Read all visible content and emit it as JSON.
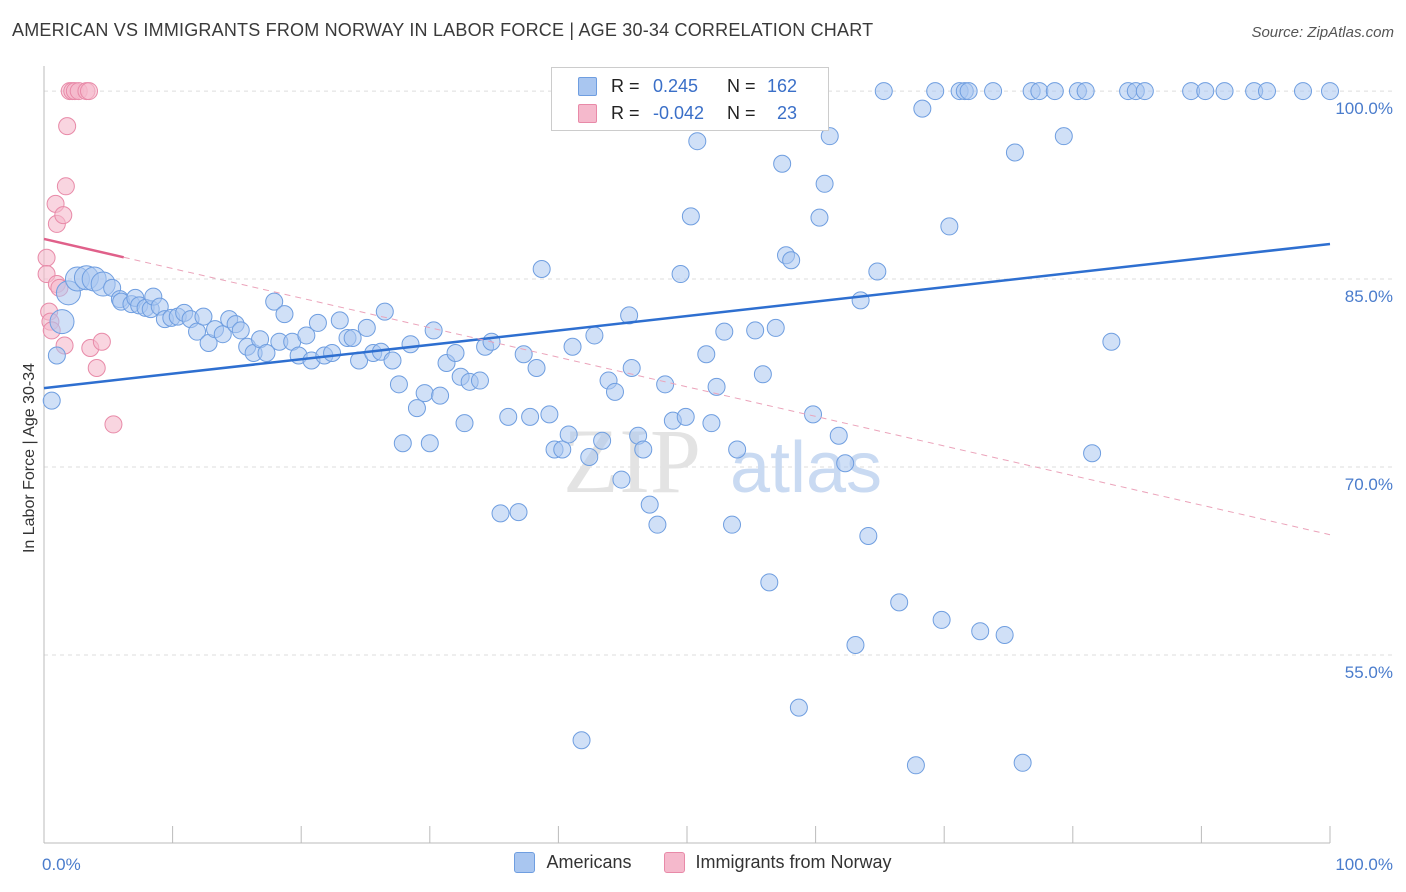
{
  "header": {
    "title": "AMERICAN VS IMMIGRANTS FROM NORWAY IN LABOR FORCE | AGE 30-34 CORRELATION CHART",
    "source": "Source: ZipAtlas.com"
  },
  "watermark": {
    "zip": "ZIP",
    "atlas": "atlas"
  },
  "legend": {
    "rows": [
      {
        "r_label": "R =",
        "r_value": "0.245",
        "n_label": "N =",
        "n_value": "162",
        "color": "#a9c6f0"
      },
      {
        "r_label": "R =",
        "r_value": "-0.042",
        "n_label": "N =",
        "n_value": "23",
        "color": "#f5b9cc"
      }
    ]
  },
  "bottom_legend": [
    {
      "label": "Americans",
      "color": "#a9c6f0"
    },
    {
      "label": "Immigrants from Norway",
      "color": "#f5b9cc"
    }
  ],
  "chart_data": {
    "type": "scatter",
    "title": "AMERICAN VS IMMIGRANTS FROM NORWAY IN LABOR FORCE | AGE 30-34 CORRELATION CHART",
    "xlabel": "",
    "ylabel": "In Labor Force | Age 30-34",
    "xlim": [
      0,
      100
    ],
    "ylim": [
      40,
      102
    ],
    "x_tick_labels": [
      "0.0%",
      "100.0%"
    ],
    "y_ticks": [
      55,
      70,
      85,
      100
    ],
    "y_tick_labels": [
      "55.0%",
      "70.0%",
      "85.0%",
      "100.0%"
    ],
    "grid": true,
    "legend_position": "top-center",
    "series": [
      {
        "name": "Americans",
        "color": "#a9c6f0",
        "stroke": "#6f9ee0",
        "r": 0.245,
        "n": 162,
        "trend": {
          "x": [
            0,
            100
          ],
          "y": [
            76.3,
            87.8
          ],
          "color": "#2e6fd0"
        },
        "points": [
          [
            0.6,
            75.3
          ],
          [
            1.0,
            78.9
          ],
          [
            1.4,
            81.6
          ],
          [
            1.9,
            83.9
          ],
          [
            2.6,
            85.0
          ],
          [
            3.3,
            85.1
          ],
          [
            3.9,
            85.0
          ],
          [
            4.6,
            84.6
          ],
          [
            5.3,
            84.3
          ],
          [
            5.9,
            83.4
          ],
          [
            6.0,
            83.2
          ],
          [
            6.8,
            83.0
          ],
          [
            7.1,
            83.5
          ],
          [
            7.4,
            82.9
          ],
          [
            7.9,
            82.7
          ],
          [
            8.3,
            82.6
          ],
          [
            8.5,
            83.6
          ],
          [
            9.0,
            82.8
          ],
          [
            9.4,
            81.8
          ],
          [
            9.9,
            81.9
          ],
          [
            10.4,
            82.0
          ],
          [
            10.9,
            82.3
          ],
          [
            11.4,
            81.8
          ],
          [
            11.9,
            80.8
          ],
          [
            12.4,
            82.0
          ],
          [
            12.8,
            79.9
          ],
          [
            13.3,
            81.0
          ],
          [
            13.9,
            80.6
          ],
          [
            14.4,
            81.8
          ],
          [
            14.9,
            81.4
          ],
          [
            15.3,
            80.9
          ],
          [
            15.8,
            79.6
          ],
          [
            16.3,
            79.1
          ],
          [
            16.8,
            80.2
          ],
          [
            17.3,
            79.1
          ],
          [
            17.9,
            83.2
          ],
          [
            18.3,
            80.0
          ],
          [
            18.7,
            82.2
          ],
          [
            19.3,
            80.0
          ],
          [
            19.8,
            78.9
          ],
          [
            20.4,
            80.5
          ],
          [
            20.8,
            78.5
          ],
          [
            21.3,
            81.5
          ],
          [
            21.8,
            78.9
          ],
          [
            22.4,
            79.1
          ],
          [
            23.0,
            81.7
          ],
          [
            23.6,
            80.3
          ],
          [
            24.0,
            80.3
          ],
          [
            24.5,
            78.5
          ],
          [
            25.1,
            81.1
          ],
          [
            25.6,
            79.1
          ],
          [
            26.2,
            79.2
          ],
          [
            26.5,
            82.4
          ],
          [
            27.1,
            78.5
          ],
          [
            27.6,
            76.6
          ],
          [
            27.9,
            71.9
          ],
          [
            28.5,
            79.8
          ],
          [
            29.0,
            74.7
          ],
          [
            29.6,
            75.9
          ],
          [
            30.0,
            71.9
          ],
          [
            30.3,
            80.9
          ],
          [
            30.8,
            75.7
          ],
          [
            31.3,
            78.3
          ],
          [
            32.0,
            79.1
          ],
          [
            32.4,
            77.2
          ],
          [
            32.7,
            73.5
          ],
          [
            33.1,
            76.8
          ],
          [
            33.9,
            76.9
          ],
          [
            34.3,
            79.6
          ],
          [
            34.8,
            80.0
          ],
          [
            35.5,
            66.3
          ],
          [
            36.1,
            74.0
          ],
          [
            36.9,
            66.4
          ],
          [
            37.3,
            79.0
          ],
          [
            37.8,
            74.0
          ],
          [
            38.3,
            77.9
          ],
          [
            38.7,
            85.8
          ],
          [
            39.3,
            74.2
          ],
          [
            39.7,
            71.4
          ],
          [
            40.3,
            71.4
          ],
          [
            40.8,
            72.6
          ],
          [
            41.1,
            79.6
          ],
          [
            41.8,
            48.2
          ],
          [
            42.4,
            70.8
          ],
          [
            42.8,
            80.5
          ],
          [
            43.4,
            72.1
          ],
          [
            43.9,
            76.9
          ],
          [
            44.4,
            76.0
          ],
          [
            44.9,
            69.0
          ],
          [
            45.5,
            82.1
          ],
          [
            45.7,
            77.9
          ],
          [
            46.2,
            72.5
          ],
          [
            46.6,
            71.4
          ],
          [
            47.1,
            67.0
          ],
          [
            47.7,
            65.4
          ],
          [
            48.3,
            76.6
          ],
          [
            48.9,
            73.7
          ],
          [
            49.5,
            85.4
          ],
          [
            49.9,
            74.0
          ],
          [
            50.3,
            90.0
          ],
          [
            50.8,
            96.0
          ],
          [
            51.5,
            79.0
          ],
          [
            51.9,
            73.5
          ],
          [
            52.3,
            76.4
          ],
          [
            52.9,
            80.8
          ],
          [
            53.5,
            65.4
          ],
          [
            53.9,
            71.4
          ],
          [
            54.4,
            100.0
          ],
          [
            55.3,
            80.9
          ],
          [
            55.9,
            77.4
          ],
          [
            56.4,
            60.8
          ],
          [
            56.9,
            81.1
          ],
          [
            57.4,
            94.2
          ],
          [
            57.7,
            86.9
          ],
          [
            58.1,
            86.5
          ],
          [
            58.7,
            50.8
          ],
          [
            59.3,
            100.0
          ],
          [
            59.8,
            74.2
          ],
          [
            60.3,
            89.9
          ],
          [
            60.7,
            92.6
          ],
          [
            61.1,
            96.4
          ],
          [
            61.8,
            72.5
          ],
          [
            62.3,
            70.3
          ],
          [
            63.1,
            55.8
          ],
          [
            63.5,
            83.3
          ],
          [
            64.1,
            64.5
          ],
          [
            64.8,
            85.6
          ],
          [
            65.3,
            100.0
          ],
          [
            66.5,
            59.2
          ],
          [
            67.8,
            46.2
          ],
          [
            68.3,
            98.6
          ],
          [
            69.3,
            100.0
          ],
          [
            69.8,
            57.8
          ],
          [
            70.4,
            89.2
          ],
          [
            71.2,
            100.0
          ],
          [
            71.6,
            100.0
          ],
          [
            71.9,
            100.0
          ],
          [
            72.8,
            56.9
          ],
          [
            73.8,
            100.0
          ],
          [
            74.7,
            56.6
          ],
          [
            75.5,
            95.1
          ],
          [
            76.1,
            46.4
          ],
          [
            76.8,
            100.0
          ],
          [
            77.4,
            100.0
          ],
          [
            78.6,
            100.0
          ],
          [
            79.3,
            96.4
          ],
          [
            80.4,
            100.0
          ],
          [
            81.0,
            100.0
          ],
          [
            81.5,
            71.1
          ],
          [
            83.0,
            80.0
          ],
          [
            84.3,
            100.0
          ],
          [
            84.9,
            100.0
          ],
          [
            85.6,
            100.0
          ],
          [
            89.2,
            100.0
          ],
          [
            90.3,
            100.0
          ],
          [
            91.8,
            100.0
          ],
          [
            94.1,
            100.0
          ],
          [
            95.1,
            100.0
          ],
          [
            97.9,
            100.0
          ],
          [
            100.0,
            100.0
          ]
        ]
      },
      {
        "name": "Immigrants from Norway",
        "color": "#f5b9cc",
        "stroke": "#e88aa8",
        "r": -0.042,
        "n": 23,
        "trend": {
          "x": [
            0,
            100
          ],
          "y": [
            88.2,
            64.6
          ],
          "solid_until_x": 6.2,
          "color": "#e0608a"
        },
        "points": [
          [
            0.2,
            86.7
          ],
          [
            0.2,
            85.4
          ],
          [
            0.4,
            82.4
          ],
          [
            0.5,
            81.6
          ],
          [
            0.6,
            80.9
          ],
          [
            0.9,
            91.0
          ],
          [
            1.0,
            89.4
          ],
          [
            1.0,
            84.6
          ],
          [
            1.2,
            84.3
          ],
          [
            1.5,
            90.1
          ],
          [
            1.6,
            79.7
          ],
          [
            1.7,
            92.4
          ],
          [
            1.8,
            97.2
          ],
          [
            2.0,
            100.0
          ],
          [
            2.2,
            100.0
          ],
          [
            2.4,
            100.0
          ],
          [
            2.7,
            100.0
          ],
          [
            3.3,
            100.0
          ],
          [
            3.5,
            100.0
          ],
          [
            3.6,
            79.5
          ],
          [
            4.1,
            77.9
          ],
          [
            4.5,
            80.0
          ],
          [
            5.4,
            73.4
          ]
        ]
      }
    ]
  }
}
